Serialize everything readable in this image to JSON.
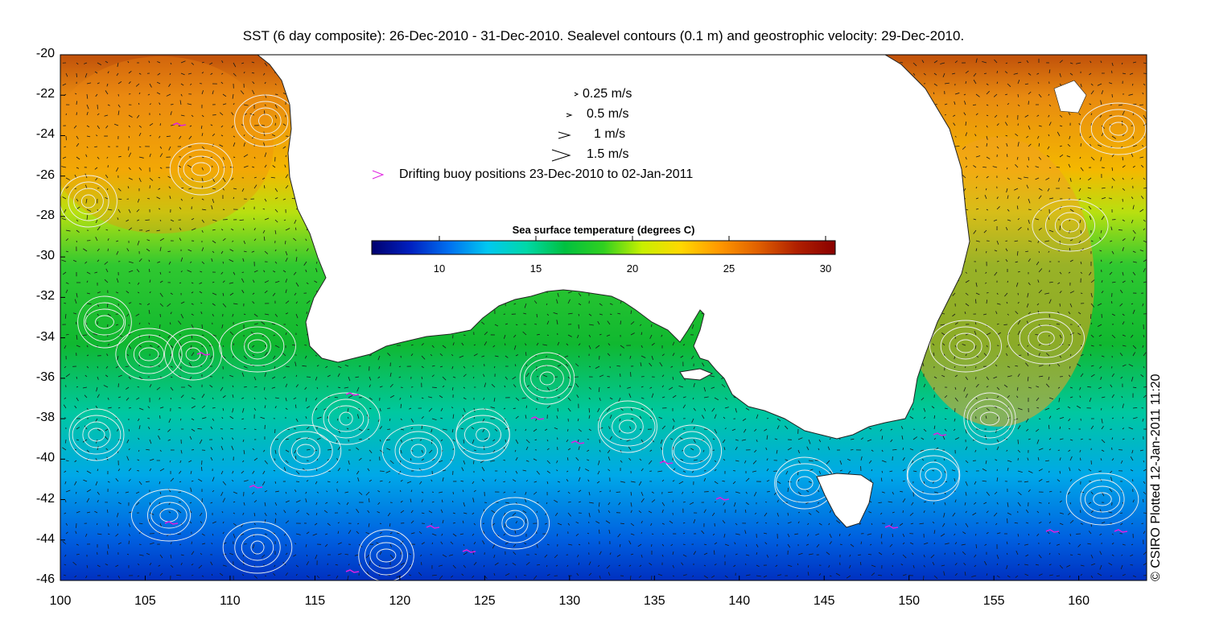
{
  "title": "SST (6 day composite): 26-Dec-2010 - 31-Dec-2010. Sealevel contours (0.1 m) and geostrophic velocity: 29-Dec-2010.",
  "axes": {
    "x_ticks": [
      "100",
      "105",
      "110",
      "115",
      "120",
      "125",
      "130",
      "135",
      "140",
      "145",
      "150",
      "155",
      "160"
    ],
    "y_ticks": [
      "-20",
      "-22",
      "-24",
      "-26",
      "-28",
      "-30",
      "-32",
      "-34",
      "-36",
      "-38",
      "-40",
      "-42",
      "-44",
      "-46"
    ],
    "x_range": [
      100,
      164
    ],
    "y_range": [
      -46,
      -20
    ]
  },
  "legend": {
    "speeds": [
      {
        "label": "0.25 m/s",
        "value": 0.25
      },
      {
        "label": "0.5 m/s",
        "value": 0.5
      },
      {
        "label": "1 m/s",
        "value": 1
      },
      {
        "label": "1.5 m/s",
        "value": 1.5
      }
    ],
    "buoy_label": "Drifting buoy positions 23-Dec-2010 to 02-Jan-2011",
    "buoy_color": "#e020e0"
  },
  "colorbar": {
    "title": "Sea surface temperature (degrees C)",
    "range": [
      6.5,
      30.5
    ],
    "ticks": [
      "10",
      "15",
      "20",
      "25",
      "30"
    ],
    "tick_values": [
      10,
      15,
      20,
      25,
      30
    ],
    "colors": [
      "#00006e",
      "#0020c0",
      "#0070f0",
      "#00c8f0",
      "#00d8a8",
      "#00c040",
      "#30d020",
      "#c8f000",
      "#ffd800",
      "#ff9800",
      "#e06000",
      "#b02000",
      "#8a0000"
    ]
  },
  "copyright": "© CSIRO Plotted 12-Jan-2011 11:20",
  "colors": {
    "land": "#ffffff",
    "contour": "#f0f0f0",
    "arrow": "#000000"
  }
}
